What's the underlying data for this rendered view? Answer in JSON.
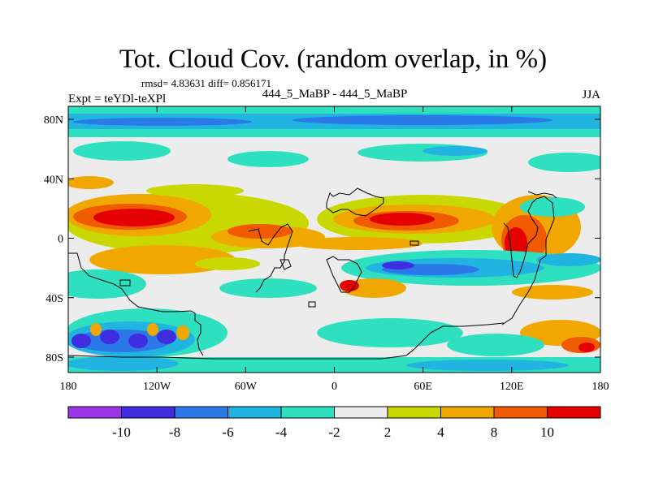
{
  "title": "Tot. Cloud Cov. (random overlap, in %)",
  "stats": "rmsd= 4.83631 diff= 0.856171",
  "experiment": "Expt = teYDl-teXPl",
  "comparison": "444_5_MaBP - 444_5_MaBP",
  "season": "JJA",
  "x_ticks": [
    "180",
    "120W",
    "60W",
    "0",
    "60E",
    "120E",
    "180"
  ],
  "y_ticks": [
    "80N",
    "40N",
    "0",
    "40S",
    "80S"
  ],
  "colorbar": {
    "labels": [
      "-10",
      "-8",
      "-6",
      "-4",
      "-2",
      "2",
      "4",
      "8",
      "10"
    ],
    "colors": [
      "#9b35e8",
      "#3e2ee0",
      "#2a79e6",
      "#21b4e0",
      "#2ee0c0",
      "#ececec",
      "#c8d800",
      "#f0a800",
      "#f05a00",
      "#e40000"
    ]
  }
}
